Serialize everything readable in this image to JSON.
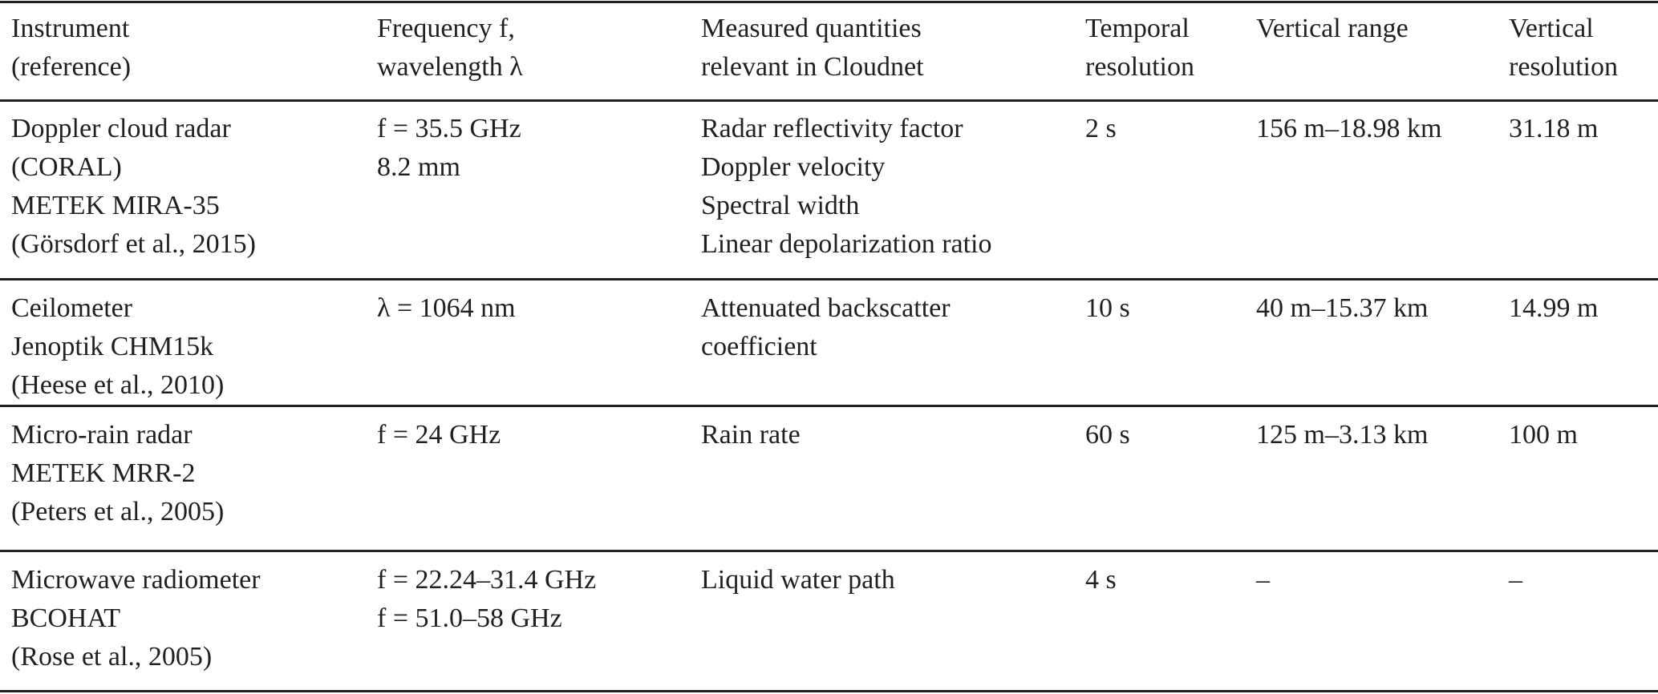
{
  "table": {
    "headers": [
      [
        "Instrument",
        "(reference)"
      ],
      [
        "Frequency f,",
        "wavelength λ"
      ],
      [
        "Measured quantities",
        "relevant in Cloudnet"
      ],
      [
        "Temporal",
        "resolution"
      ],
      [
        "Vertical range"
      ],
      [
        "Vertical",
        "resolution"
      ]
    ],
    "rows": [
      {
        "instrument": [
          "Doppler cloud radar",
          "(CORAL)",
          "METEK MIRA-35",
          "(Görsdorf et al., 2015)"
        ],
        "frequency": [
          "f = 35.5 GHz",
          "8.2 mm"
        ],
        "quantities": [
          "Radar reflectivity factor",
          "Doppler velocity",
          "Spectral width",
          "Linear depolarization ratio"
        ],
        "temporal": "2 s",
        "vertical_range": "156 m–18.98 km",
        "vertical_resolution": "31.18 m"
      },
      {
        "instrument": [
          "Ceilometer",
          "Jenoptik CHM15k",
          "(Heese et al., 2010)"
        ],
        "frequency": [
          "λ = 1064 nm"
        ],
        "quantities": [
          "Attenuated backscatter",
          "coefficient"
        ],
        "temporal": "10 s",
        "vertical_range": "40 m–15.37 km",
        "vertical_resolution": "14.99 m"
      },
      {
        "instrument": [
          "Micro-rain radar",
          "METEK MRR-2",
          "(Peters et al., 2005)"
        ],
        "frequency": [
          "f = 24 GHz"
        ],
        "quantities": [
          "Rain rate"
        ],
        "temporal": "60 s",
        "vertical_range": "125 m–3.13 km",
        "vertical_resolution": "100 m"
      },
      {
        "instrument": [
          "Microwave radiometer",
          "BCOHAT",
          "(Rose et al., 2005)"
        ],
        "frequency": [
          "f = 22.24–31.4 GHz",
          "f = 51.0–58 GHz"
        ],
        "quantities": [
          "Liquid water path"
        ],
        "temporal": "4 s",
        "vertical_range": "–",
        "vertical_resolution": "–"
      }
    ]
  }
}
